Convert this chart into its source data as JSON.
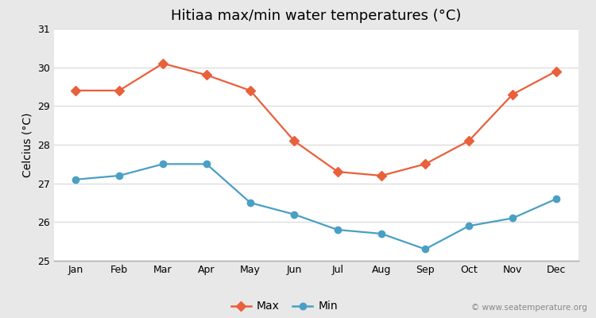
{
  "title": "Hitiaa max/min water temperatures (°C)",
  "ylabel": "Celcius (°C)",
  "months": [
    "Jan",
    "Feb",
    "Mar",
    "Apr",
    "May",
    "Jun",
    "Jul",
    "Aug",
    "Sep",
    "Oct",
    "Nov",
    "Dec"
  ],
  "max_temps": [
    29.4,
    29.4,
    30.1,
    29.8,
    29.4,
    28.1,
    27.3,
    27.2,
    27.5,
    28.1,
    29.3,
    29.9
  ],
  "min_temps": [
    27.1,
    27.2,
    27.5,
    27.5,
    26.5,
    26.2,
    25.8,
    25.7,
    25.3,
    25.9,
    26.1,
    26.6
  ],
  "max_color": "#e8603c",
  "min_color": "#4a9fc4",
  "figure_bg_color": "#e8e8e8",
  "plot_bg_color": "#ffffff",
  "bottom_bg_color": "#e8e8e8",
  "ylim": [
    25,
    31
  ],
  "yticks": [
    25,
    26,
    27,
    28,
    29,
    30,
    31
  ],
  "legend_labels": [
    "Max",
    "Min"
  ],
  "watermark": "© www.seatemperature.org",
  "title_fontsize": 13,
  "axis_label_fontsize": 10,
  "tick_fontsize": 9,
  "legend_fontsize": 10,
  "watermark_fontsize": 7.5,
  "max_marker": "D",
  "min_marker": "o",
  "linewidth": 1.6,
  "markersize": 6
}
